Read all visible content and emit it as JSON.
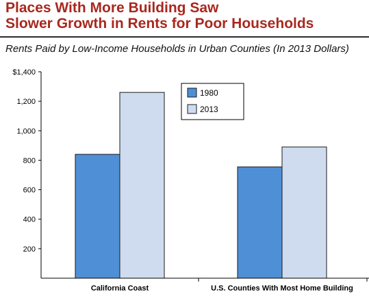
{
  "header": {
    "title": "Places With More Building Saw\nSlower Growth in Rents for Poor Households",
    "subtitle": "Rents Paid by Low-Income Households in Urban Counties (In 2013 Dollars)"
  },
  "colors": {
    "title": "#a8281e",
    "series_1980": "#4f8fd6",
    "series_2013": "#cfdcf0",
    "axis": "#000000"
  },
  "chart_data": {
    "type": "bar",
    "categories": [
      "California Coast",
      "U.S. Counties With Most Home Building"
    ],
    "series": [
      {
        "name": "1980",
        "values": [
          840,
          755
        ]
      },
      {
        "name": "2013",
        "values": [
          1260,
          890
        ]
      }
    ],
    "ylim": [
      0,
      1400
    ],
    "yticks": [
      200,
      400,
      600,
      800,
      1000,
      1200,
      1400
    ],
    "ytick_labels": [
      "200",
      "400",
      "600",
      "800",
      "1,000",
      "1,200",
      "$1,400"
    ],
    "grid": false,
    "legend": "top-center"
  }
}
